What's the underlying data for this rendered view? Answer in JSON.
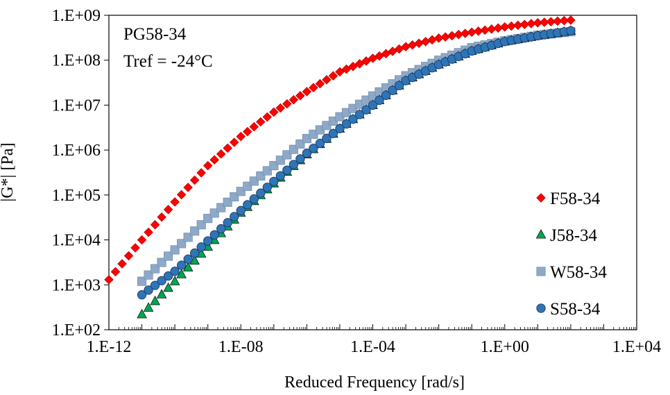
{
  "chart_data": {
    "type": "scatter",
    "title": "",
    "xlabel": "Reduced Frequency [rad/s]",
    "ylabel": "|G*| [Pa]",
    "xscale": "log",
    "yscale": "log",
    "xlim": [
      1e-12,
      10000
    ],
    "ylim": [
      100,
      1000000000
    ],
    "x_ticks": [
      "1.E-12",
      "1.E-08",
      "1.E-04",
      "1.E+00",
      "1.E+04"
    ],
    "y_ticks": [
      "1.E+02",
      "1.E+03",
      "1.E+04",
      "1.E+05",
      "1.E+06",
      "1.E+07",
      "1.E+08",
      "1.E+09"
    ],
    "annotations": [
      "PG58-34",
      "Tref = -24°C"
    ],
    "grid": false,
    "legend_position": "bottom-right",
    "series": [
      {
        "name": "F58-34",
        "marker": "diamond",
        "color": "#ff0000",
        "x": [
          1e-12,
          1e-11,
          1e-10,
          1e-09,
          1e-08,
          1e-07,
          1e-06,
          1e-05,
          0.0001,
          0.001,
          0.01,
          0.1,
          1,
          10,
          100
        ],
        "y": [
          1300,
          10000,
          70000,
          450000,
          2000000,
          7000000,
          20000000,
          55000000,
          110000000,
          200000000,
          310000000,
          420000000,
          550000000,
          680000000,
          780000000
        ]
      },
      {
        "name": "J58-34",
        "marker": "triangle",
        "color": "#00a550",
        "x": [
          1e-11,
          1e-10,
          1e-09,
          1e-08,
          1e-07,
          1e-06,
          1e-05,
          0.0001,
          0.001,
          0.01,
          0.1,
          1,
          10,
          100
        ],
        "y": [
          220,
          1200,
          7000,
          40000,
          180000,
          800000,
          3000000,
          10000000,
          35000000,
          80000000,
          160000000,
          260000000,
          350000000,
          450000000
        ]
      },
      {
        "name": "W58-34",
        "marker": "square",
        "color": "#8ea9c8",
        "x": [
          1e-11,
          1e-10,
          1e-09,
          1e-08,
          1e-07,
          1e-06,
          1e-05,
          0.0001,
          0.001,
          0.01,
          0.1,
          1,
          10,
          100
        ],
        "y": [
          1200,
          6000,
          30000,
          120000,
          450000,
          1800000,
          5500000,
          16000000,
          45000000,
          100000000,
          190000000,
          270000000,
          360000000,
          430000000
        ]
      },
      {
        "name": "S58-34",
        "marker": "circle",
        "color": "#2e75b6",
        "x": [
          1e-11,
          1e-10,
          1e-09,
          1e-08,
          1e-07,
          1e-06,
          1e-05,
          0.0001,
          0.001,
          0.01,
          0.1,
          1,
          10,
          100
        ],
        "y": [
          600,
          2000,
          9500,
          45000,
          200000,
          850000,
          3000000,
          10000000,
          35000000,
          80000000,
          160000000,
          260000000,
          350000000,
          450000000
        ]
      }
    ]
  }
}
